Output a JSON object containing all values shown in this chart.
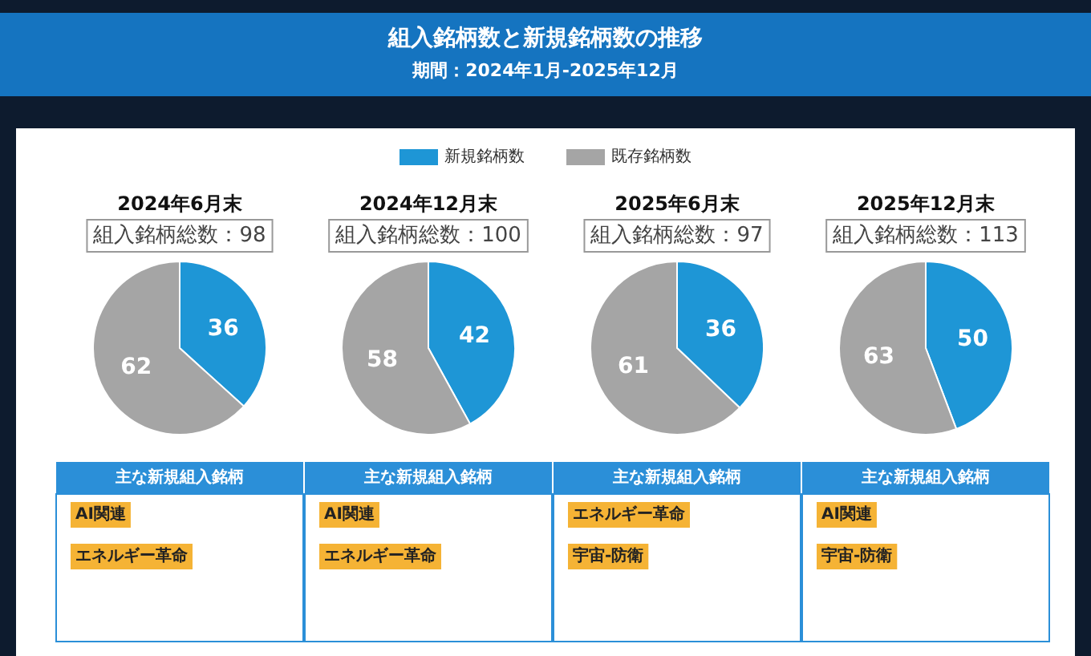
{
  "chart_data": [
    {
      "type": "other",
      "title": "組入銘柄数と新規銘柄数の推移",
      "subtitle": "期間：2024年1月-2025年12月"
    },
    {
      "type": "pie",
      "title": "2024年6月末",
      "subtitle": "組入銘柄総数：98",
      "categories": [
        "新規銘柄数",
        "既存銘柄数"
      ],
      "values": [
        36,
        62
      ],
      "colors": [
        "#1e96d6",
        "#a5a5a5"
      ],
      "data_labels": true,
      "legend": "top",
      "annotations": [
        "主な新規組入銘柄",
        "AI関連",
        "エネルギー革命"
      ]
    },
    {
      "type": "pie",
      "title": "2024年12月末",
      "subtitle": "組入銘柄総数：100",
      "categories": [
        null,
        null
      ],
      "values": [
        42,
        58
      ],
      "colors": [
        "#1e96d6",
        "#a5a5a5"
      ],
      "data_labels": true,
      "annotations": [
        "主な新規組入銘柄",
        "AI関連",
        "エネルギー革命"
      ]
    },
    {
      "type": "pie",
      "title": "2025年6月末",
      "subtitle": "組入銘柄総数：97",
      "categories": [
        null,
        null
      ],
      "values": [
        36,
        61
      ],
      "colors": [
        "#1e96d6",
        "#a5a5a5"
      ],
      "data_labels": true,
      "annotations": [
        "主な新規組入銘柄",
        "エネルギー革命",
        "宇宙-防衛"
      ]
    },
    {
      "type": "pie",
      "title": "2025年12月末",
      "subtitle": "組入銘柄総数：113",
      "categories": [
        null,
        null
      ],
      "values": [
        50,
        63
      ],
      "colors": [
        "#1e96d6",
        "#a5a5a5"
      ],
      "data_labels": true,
      "annotations": [
        "主な新規組入銘柄",
        "AI関連",
        "宇宙-防衛"
      ]
    }
  ]
}
